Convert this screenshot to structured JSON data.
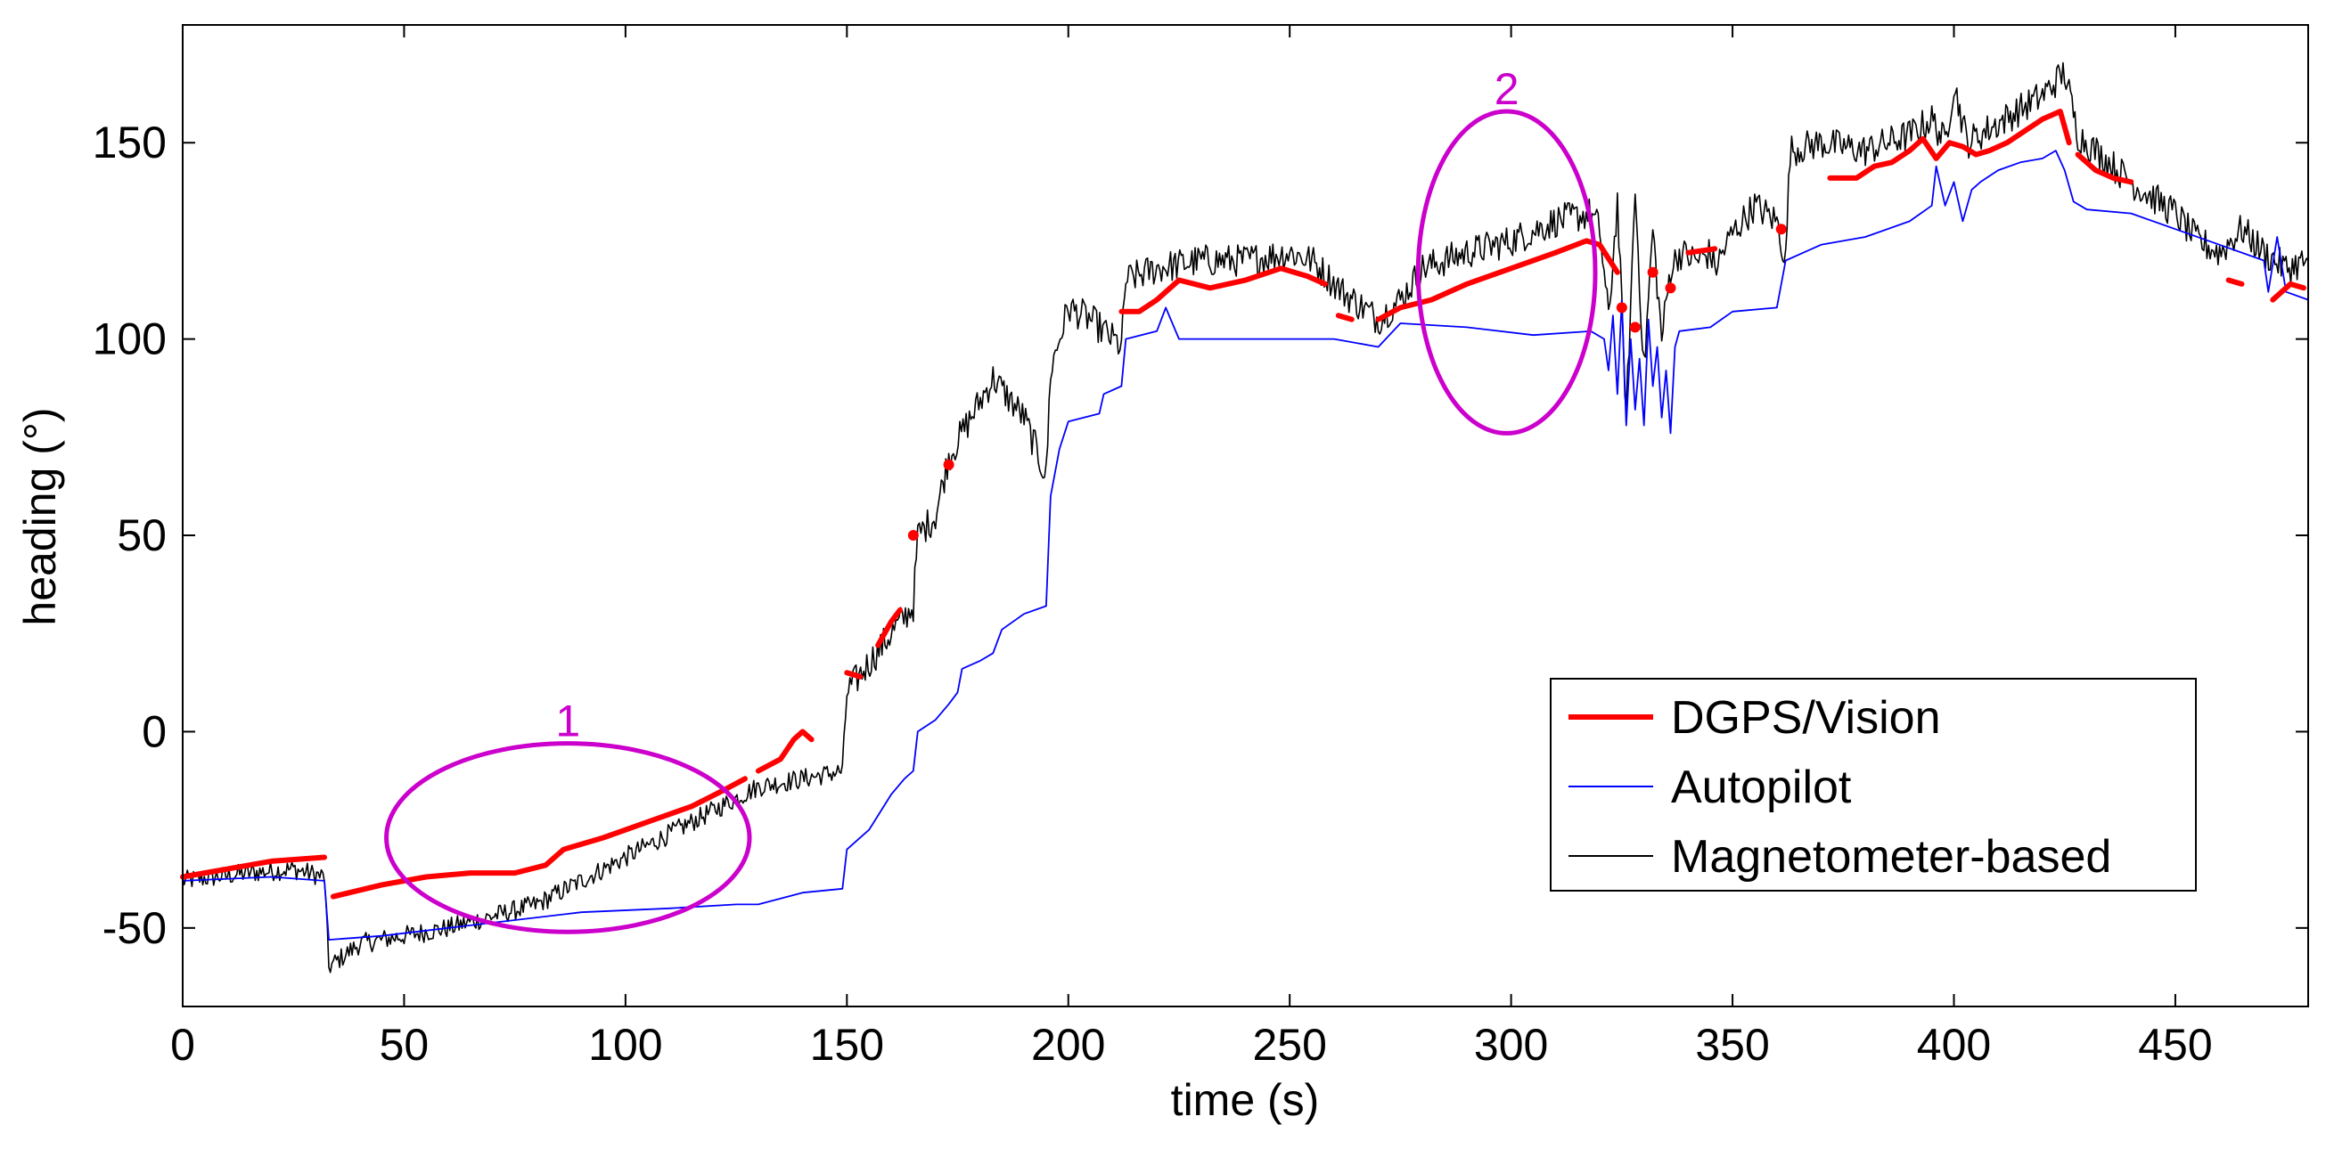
{
  "chart_data": {
    "type": "line",
    "title": "",
    "xlabel": "time (s)",
    "ylabel": "heading (°)",
    "xlim": [
      0,
      480
    ],
    "ylim": [
      -70,
      180
    ],
    "xticks": [
      0,
      50,
      100,
      150,
      200,
      250,
      300,
      350,
      400,
      450
    ],
    "yticks": [
      -50,
      0,
      50,
      100,
      150
    ],
    "xtick_labels": [
      "0",
      "50",
      "100",
      "150",
      "200",
      "250",
      "300",
      "350",
      "400",
      "450"
    ],
    "ytick_labels": [
      "-50",
      "0",
      "50",
      "100",
      "150"
    ],
    "grid": false,
    "legend_position": "lower-right",
    "series": [
      {
        "name": "DGPS/Vision",
        "color": "#ff0000",
        "style": "thick",
        "segments": [
          [
            [
              0,
              -37
            ],
            [
              10,
              -35
            ],
            [
              20,
              -33
            ],
            [
              32,
              -32
            ]
          ],
          [
            [
              34,
              -42
            ],
            [
              45,
              -39
            ],
            [
              55,
              -37
            ],
            [
              65,
              -36
            ],
            [
              75,
              -36
            ],
            [
              82,
              -34
            ],
            [
              86,
              -30
            ],
            [
              95,
              -27
            ],
            [
              105,
              -23
            ],
            [
              115,
              -19
            ],
            [
              122,
              -15
            ],
            [
              127,
              -12
            ]
          ],
          [
            [
              130,
              -10
            ],
            [
              135,
              -7
            ],
            [
              138,
              -2
            ],
            [
              140,
              0
            ],
            [
              142,
              -2
            ]
          ],
          [
            [
              150,
              15
            ],
            [
              153,
              14
            ]
          ],
          [
            [
              157,
              22
            ],
            [
              160,
              28
            ],
            [
              162,
              31
            ]
          ],
          [
            [
              165,
              50
            ],
            [
              166,
              54
            ]
          ],
          [
            [
              173,
              68
            ],
            [
              174,
              68
            ]
          ],
          [
            [
              212,
              107
            ],
            [
              216,
              107
            ],
            [
              220,
              110
            ],
            [
              225,
              115
            ],
            [
              232,
              113
            ],
            [
              240,
              115
            ],
            [
              248,
              118
            ],
            [
              254,
              116
            ],
            [
              258,
              114
            ]
          ],
          [
            [
              261,
              106
            ],
            [
              264,
              105
            ]
          ],
          [
            [
              270,
              105
            ],
            [
              275,
              108
            ],
            [
              282,
              110
            ],
            [
              290,
              114
            ],
            [
              300,
              118
            ],
            [
              310,
              122
            ],
            [
              317,
              125
            ],
            [
              320,
              124
            ],
            [
              324,
              117
            ]
          ],
          [
            [
              325,
              108
            ],
            [
              326,
              107
            ]
          ],
          [
            [
              328,
              103
            ],
            [
              329,
              103
            ]
          ],
          [
            [
              332,
              117
            ],
            [
              333,
              118
            ]
          ],
          [
            [
              336,
              113
            ],
            [
              337,
              113
            ]
          ],
          [
            [
              340,
              122
            ],
            [
              346,
              123
            ]
          ],
          [
            [
              361,
              128
            ],
            [
              362,
              127
            ]
          ],
          [
            [
              372,
              141
            ],
            [
              378,
              141
            ],
            [
              382,
              144
            ],
            [
              386,
              145
            ],
            [
              390,
              148
            ],
            [
              393,
              151
            ],
            [
              396,
              146
            ],
            [
              399,
              150
            ],
            [
              402,
              149
            ],
            [
              405,
              147
            ],
            [
              408,
              148
            ],
            [
              412,
              150
            ],
            [
              416,
              153
            ],
            [
              420,
              156
            ],
            [
              424,
              158
            ],
            [
              426,
              150
            ]
          ],
          [
            [
              428,
              147
            ],
            [
              432,
              143
            ],
            [
              436,
              141
            ],
            [
              440,
              140
            ]
          ],
          [
            [
              462,
              115
            ],
            [
              465,
              114
            ]
          ],
          [
            [
              472,
              110
            ],
            [
              476,
              114
            ],
            [
              479,
              113
            ]
          ]
        ]
      },
      {
        "name": "Autopilot",
        "color": "#0000ff",
        "style": "thin",
        "points": [
          [
            0,
            -38
          ],
          [
            20,
            -37
          ],
          [
            32,
            -38
          ],
          [
            33,
            -53
          ],
          [
            45,
            -52
          ],
          [
            60,
            -50
          ],
          [
            75,
            -48
          ],
          [
            90,
            -46
          ],
          [
            110,
            -45
          ],
          [
            125,
            -44
          ],
          [
            130,
            -44
          ],
          [
            140,
            -41
          ],
          [
            149,
            -40
          ],
          [
            150,
            -30
          ],
          [
            155,
            -25
          ],
          [
            160,
            -16
          ],
          [
            163,
            -12
          ],
          [
            165,
            -10
          ],
          [
            166,
            0
          ],
          [
            170,
            3
          ],
          [
            173,
            7
          ],
          [
            175,
            10
          ],
          [
            176,
            16
          ],
          [
            180,
            18
          ],
          [
            183,
            20
          ],
          [
            185,
            26
          ],
          [
            190,
            30
          ],
          [
            195,
            32
          ],
          [
            196,
            60
          ],
          [
            198,
            72
          ],
          [
            200,
            79
          ],
          [
            207,
            81
          ],
          [
            208,
            86
          ],
          [
            212,
            88
          ],
          [
            213,
            100
          ],
          [
            220,
            102
          ],
          [
            222,
            108
          ],
          [
            225,
            100
          ],
          [
            240,
            100
          ],
          [
            260,
            100
          ],
          [
            270,
            98
          ],
          [
            275,
            104
          ],
          [
            290,
            103
          ],
          [
            305,
            101
          ],
          [
            318,
            102
          ],
          [
            321,
            100
          ],
          [
            322,
            92
          ],
          [
            323,
            106
          ],
          [
            324,
            86
          ],
          [
            325,
            110
          ],
          [
            326,
            78
          ],
          [
            327,
            100
          ],
          [
            328,
            82
          ],
          [
            329,
            95
          ],
          [
            330,
            78
          ],
          [
            331,
            105
          ],
          [
            332,
            88
          ],
          [
            333,
            98
          ],
          [
            334,
            80
          ],
          [
            335,
            92
          ],
          [
            336,
            76
          ],
          [
            337,
            98
          ],
          [
            338,
            102
          ],
          [
            345,
            103
          ],
          [
            350,
            107
          ],
          [
            360,
            108
          ],
          [
            362,
            120
          ],
          [
            370,
            124
          ],
          [
            380,
            126
          ],
          [
            390,
            130
          ],
          [
            395,
            134
          ],
          [
            396,
            144
          ],
          [
            398,
            134
          ],
          [
            400,
            140
          ],
          [
            402,
            130
          ],
          [
            404,
            138
          ],
          [
            406,
            140
          ],
          [
            410,
            143
          ],
          [
            415,
            145
          ],
          [
            420,
            146
          ],
          [
            423,
            148
          ],
          [
            425,
            143
          ],
          [
            427,
            135
          ],
          [
            430,
            133
          ],
          [
            440,
            132
          ],
          [
            450,
            128
          ],
          [
            460,
            124
          ],
          [
            470,
            120
          ],
          [
            471,
            112
          ],
          [
            473,
            126
          ],
          [
            475,
            112
          ],
          [
            480,
            110
          ]
        ]
      },
      {
        "name": "Magnetometer-based",
        "color": "#000000",
        "style": "thin",
        "noisy": true,
        "points": [
          [
            0,
            -38
          ],
          [
            15,
            -36
          ],
          [
            25,
            -35
          ],
          [
            32,
            -37
          ],
          [
            33,
            -60
          ],
          [
            40,
            -54
          ],
          [
            50,
            -52
          ],
          [
            60,
            -50
          ],
          [
            70,
            -47
          ],
          [
            80,
            -44
          ],
          [
            90,
            -38
          ],
          [
            100,
            -32
          ],
          [
            110,
            -26
          ],
          [
            120,
            -20
          ],
          [
            130,
            -14
          ],
          [
            140,
            -12
          ],
          [
            149,
            -10
          ],
          [
            150,
            10
          ],
          [
            160,
            25
          ],
          [
            165,
            32
          ],
          [
            166,
            50
          ],
          [
            170,
            55
          ],
          [
            173,
            70
          ],
          [
            178,
            80
          ],
          [
            183,
            90
          ],
          [
            190,
            80
          ],
          [
            195,
            65
          ],
          [
            196,
            92
          ],
          [
            200,
            108
          ],
          [
            205,
            105
          ],
          [
            212,
            98
          ],
          [
            213,
            115
          ],
          [
            220,
            118
          ],
          [
            230,
            120
          ],
          [
            240,
            120
          ],
          [
            250,
            122
          ],
          [
            255,
            120
          ],
          [
            262,
            112
          ],
          [
            270,
            105
          ],
          [
            275,
            110
          ],
          [
            280,
            118
          ],
          [
            290,
            122
          ],
          [
            300,
            125
          ],
          [
            310,
            130
          ],
          [
            318,
            132
          ],
          [
            320,
            128
          ],
          [
            322,
            105
          ],
          [
            324,
            135
          ],
          [
            326,
            80
          ],
          [
            328,
            138
          ],
          [
            330,
            92
          ],
          [
            332,
            128
          ],
          [
            334,
            100
          ],
          [
            336,
            118
          ],
          [
            338,
            122
          ],
          [
            342,
            120
          ],
          [
            345,
            122
          ],
          [
            346,
            118
          ],
          [
            350,
            127
          ],
          [
            355,
            134
          ],
          [
            360,
            130
          ],
          [
            362,
            120
          ],
          [
            363,
            148
          ],
          [
            370,
            150
          ],
          [
            380,
            148
          ],
          [
            390,
            152
          ],
          [
            395,
            156
          ],
          [
            398,
            150
          ],
          [
            400,
            165
          ],
          [
            403,
            150
          ],
          [
            410,
            155
          ],
          [
            420,
            162
          ],
          [
            425,
            168
          ],
          [
            428,
            152
          ],
          [
            435,
            145
          ],
          [
            440,
            140
          ],
          [
            445,
            136
          ],
          [
            450,
            132
          ],
          [
            455,
            125
          ],
          [
            460,
            122
          ],
          [
            465,
            128
          ],
          [
            470,
            122
          ],
          [
            475,
            118
          ],
          [
            480,
            120
          ]
        ]
      }
    ],
    "annotations": [
      {
        "label": "1",
        "x": 87,
        "y": -27,
        "rx": 41,
        "ry": 24
      },
      {
        "label": "2",
        "x": 299,
        "y": 117,
        "rx": 20,
        "ry": 41
      }
    ]
  }
}
